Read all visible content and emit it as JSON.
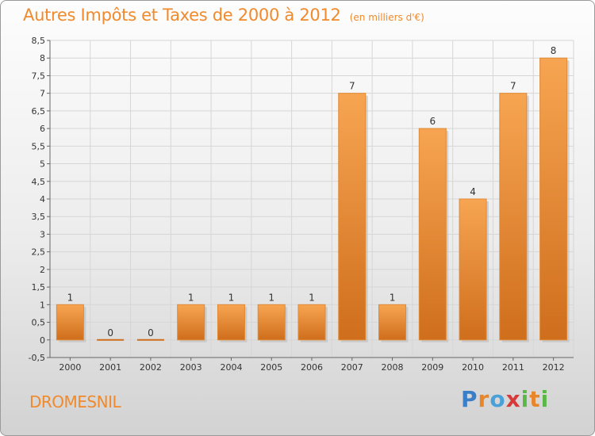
{
  "header": {
    "title": "Autres Impôts et Taxes de 2000 à 2012",
    "subtitle": "(en milliers d'€)"
  },
  "footer": {
    "commune": "DROMESNIL",
    "brand": "Proxiti",
    "brand_letters": [
      {
        "ch": "P",
        "color": "#3a7fc8"
      },
      {
        "ch": "r",
        "color": "#e8862a"
      },
      {
        "ch": "o",
        "color": "#4aa0d8"
      },
      {
        "ch": "x",
        "color": "#d83a3a"
      },
      {
        "ch": "i",
        "color": "#5cb846"
      },
      {
        "ch": "t",
        "color": "#e8862a"
      },
      {
        "ch": "i",
        "color": "#5cb846"
      }
    ]
  },
  "colors": {
    "accent": "#f08a2c",
    "bar_top": "#f7a552",
    "bar_bottom": "#cf6e1c"
  },
  "chart_data": {
    "type": "bar",
    "title": "Autres Impôts et Taxes de 2000 à 2012",
    "subtitle": "(en milliers d'€)",
    "xlabel": "",
    "ylabel": "",
    "categories": [
      "2000",
      "2001",
      "2002",
      "2003",
      "2004",
      "2005",
      "2006",
      "2007",
      "2008",
      "2009",
      "2010",
      "2011",
      "2012"
    ],
    "values": [
      1,
      0,
      0,
      1,
      1,
      1,
      1,
      7,
      1,
      6,
      4,
      7,
      8
    ],
    "labels": [
      "1",
      "0",
      "0",
      "1",
      "1",
      "1",
      "1",
      "7",
      "1",
      "6",
      "4",
      "7",
      "8"
    ],
    "ylim": [
      -0.5,
      8.5
    ],
    "yticks": [
      -0.5,
      0,
      0.5,
      1,
      1.5,
      2,
      2.5,
      3,
      3.5,
      4,
      4.5,
      5,
      5.5,
      6,
      6.5,
      7,
      7.5,
      8,
      8.5
    ],
    "ytick_labels": [
      "-0,5",
      "0",
      "0,5",
      "1",
      "1,5",
      "2",
      "2,5",
      "3",
      "3,5",
      "4",
      "4,5",
      "5",
      "5,5",
      "6",
      "6,5",
      "7",
      "7,5",
      "8",
      "8,5"
    ],
    "grid": true,
    "legend": "none"
  }
}
